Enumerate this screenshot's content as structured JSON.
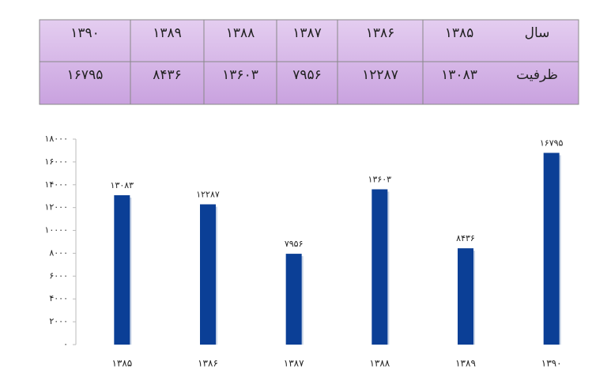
{
  "table": {
    "row_headers": [
      "سال",
      "ظرفیت"
    ]
  },
  "chart_data": {
    "type": "bar",
    "categories": [
      "۱۳۸۵",
      "۱۳۸۶",
      "۱۳۸۷",
      "۱۳۸۸",
      "۱۳۸۹",
      "۱۳۹۰"
    ],
    "values": [
      13083,
      12287,
      7956,
      13603,
      8436,
      16795
    ],
    "value_labels": [
      "۱۳۰۸۳",
      "۱۲۲۸۷",
      "۷۹۵۶",
      "۱۳۶۰۳",
      "۸۴۳۶",
      "۱۶۷۹۵"
    ],
    "color": "#0b3f96",
    "ylim": [
      0,
      18000
    ],
    "yticks": [
      {
        "value": 0,
        "label": "۰"
      },
      {
        "value": 2000,
        "label": "۲۰۰۰"
      },
      {
        "value": 4000,
        "label": "۴۰۰۰"
      },
      {
        "value": 6000,
        "label": "۶۰۰۰"
      },
      {
        "value": 8000,
        "label": "۸۰۰۰"
      },
      {
        "value": 10000,
        "label": "۱۰۰۰۰"
      },
      {
        "value": 12000,
        "label": "۱۲۰۰۰"
      },
      {
        "value": 14000,
        "label": "۱۴۰۰۰"
      },
      {
        "value": 16000,
        "label": "۱۶۰۰۰"
      },
      {
        "value": 18000,
        "label": "۱۸۰۰۰"
      }
    ]
  }
}
